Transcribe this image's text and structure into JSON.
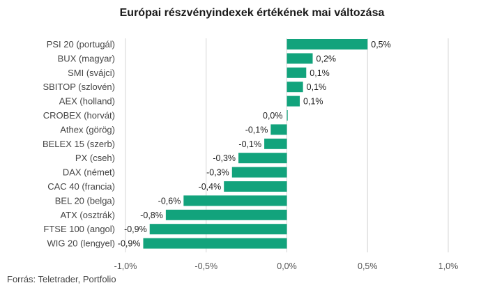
{
  "source": "Forrás: Teletrader, Portfolio",
  "chart_data": {
    "type": "bar",
    "orientation": "horizontal",
    "title": "Európai részvényindexek értékének mai változása",
    "categories": [
      "PSI 20 (portugál)",
      "BUX (magyar)",
      "SMI (svájci)",
      "SBITOP (szlovén)",
      "AEX (holland)",
      "CROBEX (horvát)",
      "Athex (görög)",
      "BELEX 15 (szerb)",
      "PX (cseh)",
      "DAX (német)",
      "CAC 40 (francia)",
      "BEL 20 (belga)",
      "ATX (osztrák)",
      "FTSE 100 (angol)",
      "WIG 20 (lengyel)"
    ],
    "values": [
      0.5,
      0.16,
      0.12,
      0.1,
      0.08,
      0.0,
      -0.1,
      -0.14,
      -0.3,
      -0.34,
      -0.39,
      -0.64,
      -0.75,
      -0.85,
      -0.89
    ],
    "value_labels": [
      "0,5%",
      "0,2%",
      "0,1%",
      "0,1%",
      "0,1%",
      "0,0%",
      "-0,1%",
      "-0,1%",
      "-0,3%",
      "-0,3%",
      "-0,4%",
      "-0,6%",
      "-0,8%",
      "-0,9%",
      "-0,9%"
    ],
    "xlim": [
      -1.0,
      1.0
    ],
    "xticks": [
      -1.0,
      -0.5,
      0.0,
      0.5,
      1.0
    ],
    "xtick_labels": [
      "-1,0%",
      "-0,5%",
      "0,0%",
      "0,5%",
      "1,0%"
    ],
    "bar_color": "#12a37c",
    "grid": true,
    "legend": false
  }
}
